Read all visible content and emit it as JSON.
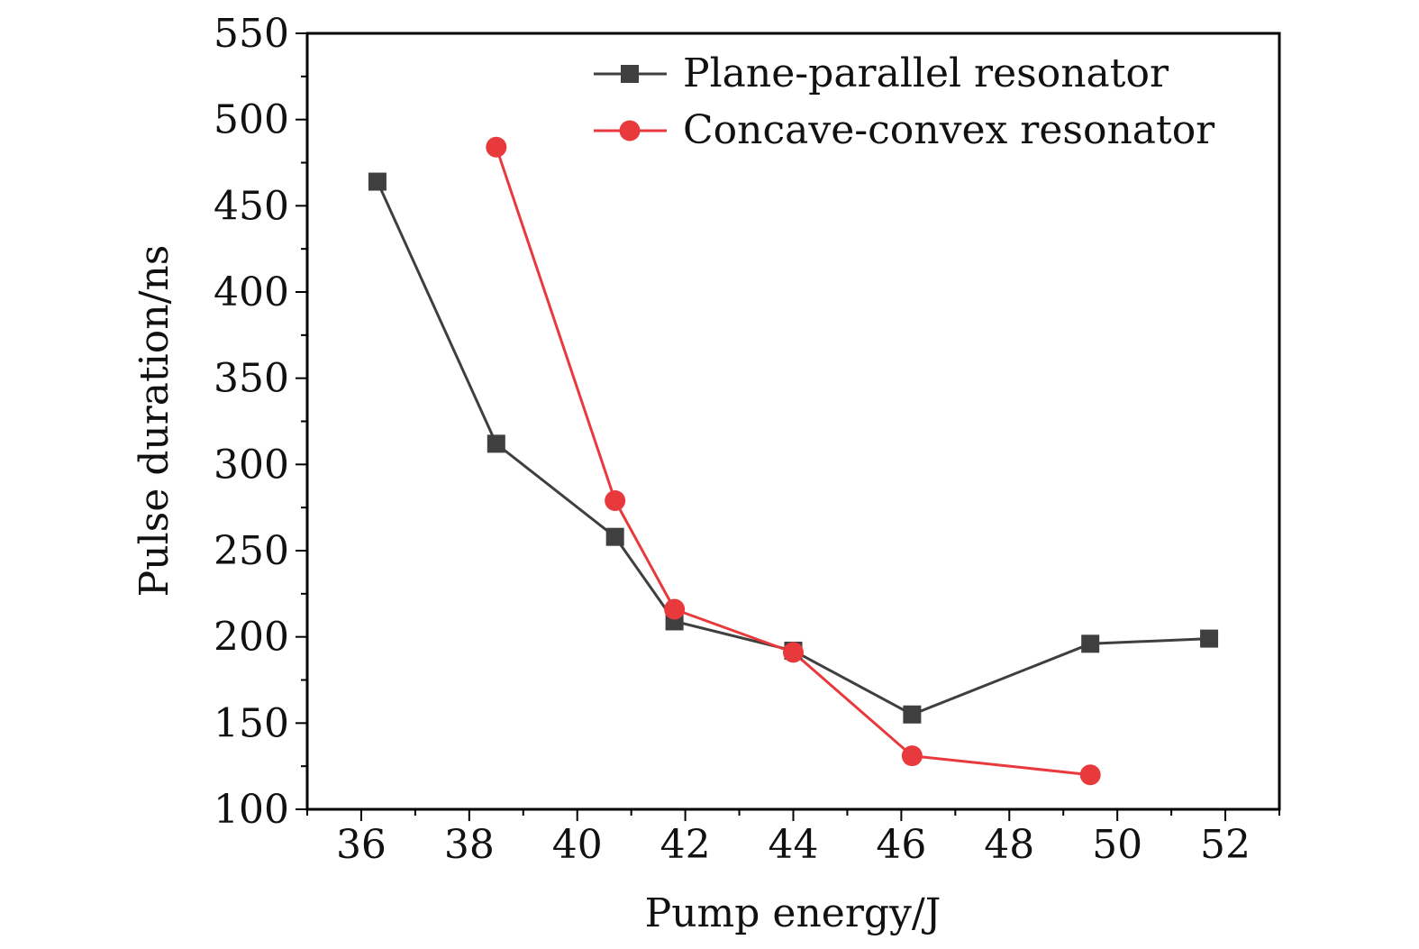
{
  "chart_data": {
    "type": "line",
    "xlabel": "Pump energy/J",
    "ylabel": "Pulse duration/ns",
    "xlim": [
      35,
      53
    ],
    "ylim": [
      100,
      550
    ],
    "xticks": [
      36,
      38,
      40,
      42,
      44,
      46,
      48,
      50,
      52
    ],
    "yticks": [
      100,
      150,
      200,
      250,
      300,
      350,
      400,
      450,
      500,
      550
    ],
    "legend_position": "top-right",
    "series": [
      {
        "name": "Plane-parallel resonator",
        "marker": "square",
        "color": "#3f3f3f",
        "x": [
          36.3,
          38.5,
          40.7,
          41.8,
          44.0,
          46.2,
          49.5,
          51.7
        ],
        "y": [
          464,
          312,
          258,
          209,
          192,
          155,
          196,
          199
        ]
      },
      {
        "name": "Concave-convex resonator",
        "marker": "circle",
        "color": "#e8393d",
        "x": [
          38.5,
          40.7,
          41.8,
          44.0,
          46.2,
          49.5
        ],
        "y": [
          484,
          279,
          216,
          191,
          131,
          120
        ]
      }
    ]
  }
}
